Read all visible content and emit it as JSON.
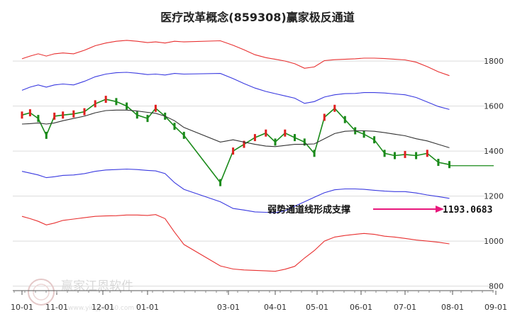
{
  "chart_data": {
    "type": "line",
    "title": "医疗改革概念(859308)赢家极反通道",
    "x_ticks": [
      "10-01",
      "11-01",
      "12-01",
      "01-01",
      "03-01",
      "04-01",
      "05-01",
      "06-01",
      "07-01",
      "08-01",
      "09-01"
    ],
    "y_ticks": [
      800,
      1000,
      1200,
      1400,
      1600,
      1800
    ],
    "ylim": [
      780,
      1920
    ],
    "grid": true,
    "x": [
      "10-01",
      "10-08",
      "10-15",
      "10-22",
      "10-29",
      "11-05",
      "11-12",
      "11-19",
      "11-26",
      "12-03",
      "12-10",
      "12-17",
      "12-24",
      "12-31",
      "01-07",
      "01-14",
      "01-21",
      "01-28",
      "02-25",
      "03-04",
      "03-11",
      "03-18",
      "03-25",
      "04-01",
      "04-08",
      "04-15",
      "04-22",
      "04-29",
      "05-06",
      "05-13",
      "05-20",
      "05-27",
      "06-03",
      "06-10",
      "06-17",
      "06-24",
      "07-01",
      "07-08",
      "07-15",
      "07-22",
      "07-29"
    ],
    "series": [
      {
        "values": [
          1560,
          1570,
          1545,
          1470,
          1555,
          1560,
          1565,
          1575,
          1610,
          1630,
          1620,
          1600,
          1560,
          1545,
          1590,
          1555,
          1510,
          1470,
          1260,
          1400,
          1430,
          1460,
          1480,
          1440,
          1480,
          1460,
          1440,
          1390,
          1550,
          1590,
          1540,
          1490,
          1475,
          1450,
          1390,
          1380,
          1385,
          1380,
          1390,
          1350,
          1340
        ],
        "color": "#1a8a1a"
      },
      {
        "values": [
          1520,
          1522,
          1525,
          1520,
          1525,
          1535,
          1545,
          1555,
          1570,
          1580,
          1582,
          1582,
          1578,
          1572,
          1568,
          1555,
          1535,
          1505,
          1440,
          1450,
          1440,
          1430,
          1422,
          1420,
          1425,
          1430,
          1430,
          1432,
          1455,
          1478,
          1488,
          1490,
          1490,
          1488,
          1482,
          1475,
          1468,
          1455,
          1445,
          1430,
          1415
        ],
        "color": "#333333"
      },
      {
        "values": [
          1810,
          1822,
          1832,
          1822,
          1832,
          1836,
          1832,
          1848,
          1868,
          1880,
          1888,
          1892,
          1888,
          1882,
          1885,
          1880,
          1888,
          1885,
          1890,
          1870,
          1850,
          1828,
          1815,
          1808,
          1800,
          1788,
          1768,
          1774,
          1802,
          1806,
          1808,
          1810,
          1813,
          1813,
          1811,
          1808,
          1805,
          1795,
          1775,
          1752,
          1735
        ],
        "color": "#e83030"
      },
      {
        "values": [
          1670,
          1684,
          1694,
          1684,
          1694,
          1698,
          1694,
          1710,
          1730,
          1742,
          1748,
          1750,
          1746,
          1740,
          1742,
          1738,
          1745,
          1742,
          1745,
          1722,
          1700,
          1680,
          1665,
          1655,
          1645,
          1635,
          1612,
          1620,
          1640,
          1650,
          1655,
          1656,
          1660,
          1660,
          1658,
          1654,
          1650,
          1638,
          1618,
          1598,
          1585
        ],
        "color": "#3a3ae0"
      },
      {
        "values": [
          1310,
          1302,
          1294,
          1282,
          1286,
          1292,
          1294,
          1300,
          1310,
          1316,
          1318,
          1320,
          1318,
          1314,
          1312,
          1300,
          1260,
          1230,
          1175,
          1145,
          1138,
          1130,
          1128,
          1126,
          1135,
          1155,
          1175,
          1195,
          1215,
          1228,
          1232,
          1232,
          1230,
          1226,
          1222,
          1220,
          1220,
          1214,
          1205,
          1198,
          1190
        ],
        "color": "#3a3ae0"
      },
      {
        "values": [
          1110,
          1100,
          1088,
          1072,
          1080,
          1092,
          1098,
          1104,
          1110,
          1112,
          1113,
          1116,
          1116,
          1114,
          1118,
          1100,
          1040,
          985,
          890,
          876,
          872,
          870,
          868,
          866,
          875,
          888,
          925,
          958,
          1000,
          1018,
          1025,
          1030,
          1034,
          1030,
          1022,
          1018,
          1012,
          1005,
          1000,
          995,
          988
        ],
        "color": "#e83030"
      }
    ],
    "flat_line": {
      "value": 1335,
      "color": "#1a8a1a"
    },
    "annotation": {
      "text": "弱势通道线形成支撑",
      "value": "1193.0683",
      "arrow_color": "#e8187c"
    }
  },
  "watermark": {
    "text": "赢家江恩软件",
    "sub": "www.yingjia360.com"
  }
}
